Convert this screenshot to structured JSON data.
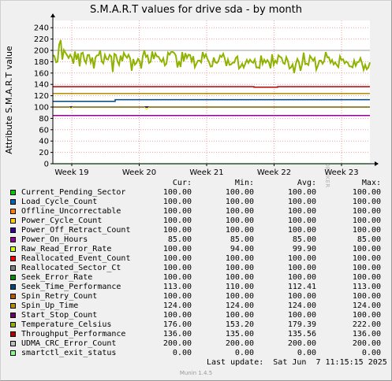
{
  "chart_data": {
    "type": "line",
    "title": "S.M.A.R.T values for drive sda - by month",
    "ylabel": "Attribute S.M.A.R.T value",
    "ylim": [
      0,
      250
    ],
    "yticks": [
      0,
      20,
      40,
      60,
      80,
      100,
      120,
      140,
      160,
      180,
      200,
      220,
      240
    ],
    "xticks": [
      "Week 19",
      "Week 20",
      "Week 21",
      "Week 22",
      "Week 23"
    ],
    "grid": true,
    "legend_position": "bottom",
    "columns": [
      "Cur:",
      "Min:",
      "Avg:",
      "Max:"
    ],
    "series": [
      {
        "name": "Current_Pending_Sector",
        "color": "#00cc00",
        "cur": "100.00",
        "min": "100.00",
        "avg": "100.00",
        "max": "100.00"
      },
      {
        "name": "Load_Cycle_Count",
        "color": "#0066b3",
        "cur": "100.00",
        "min": "100.00",
        "avg": "100.00",
        "max": "100.00"
      },
      {
        "name": "Offline_Uncorrectable",
        "color": "#ff8000",
        "cur": "100.00",
        "min": "100.00",
        "avg": "100.00",
        "max": "100.00"
      },
      {
        "name": "Power_Cycle_Count",
        "color": "#ffcc00",
        "cur": "100.00",
        "min": "100.00",
        "avg": "100.00",
        "max": "100.00"
      },
      {
        "name": "Power_Off_Retract_Count",
        "color": "#330099",
        "cur": "100.00",
        "min": "100.00",
        "avg": "100.00",
        "max": "100.00"
      },
      {
        "name": "Power_On_Hours",
        "color": "#990099",
        "cur": "85.00",
        "min": "85.00",
        "avg": "85.00",
        "max": "85.00"
      },
      {
        "name": "Raw_Read_Error_Rate",
        "color": "#ccff00",
        "cur": "100.00",
        "min": "94.00",
        "avg": "99.90",
        "max": "100.00"
      },
      {
        "name": "Reallocated_Event_Count",
        "color": "#ff0000",
        "cur": "100.00",
        "min": "100.00",
        "avg": "100.00",
        "max": "100.00"
      },
      {
        "name": "Reallocated_Sector_Ct",
        "color": "#808080",
        "cur": "100.00",
        "min": "100.00",
        "avg": "100.00",
        "max": "100.00"
      },
      {
        "name": "Seek_Error_Rate",
        "color": "#008f00",
        "cur": "100.00",
        "min": "100.00",
        "avg": "100.00",
        "max": "100.00"
      },
      {
        "name": "Seek_Time_Performance",
        "color": "#00487d",
        "cur": "113.00",
        "min": "110.00",
        "avg": "112.41",
        "max": "113.00"
      },
      {
        "name": "Spin_Retry_Count",
        "color": "#b35a00",
        "cur": "100.00",
        "min": "100.00",
        "avg": "100.00",
        "max": "100.00"
      },
      {
        "name": "Spin_Up_Time",
        "color": "#b38f00",
        "cur": "124.00",
        "min": "124.00",
        "avg": "124.00",
        "max": "124.00"
      },
      {
        "name": "Start_Stop_Count",
        "color": "#6b006b",
        "cur": "100.00",
        "min": "100.00",
        "avg": "100.00",
        "max": "100.00"
      },
      {
        "name": "Temperature_Celsius",
        "color": "#8fb300",
        "cur": "176.00",
        "min": "153.20",
        "avg": "179.39",
        "max": "222.00"
      },
      {
        "name": "Throughput_Performance",
        "color": "#b30000",
        "cur": "136.00",
        "min": "135.00",
        "avg": "135.56",
        "max": "136.00"
      },
      {
        "name": "UDMA_CRC_Error_Count",
        "color": "#bebebe",
        "cur": "200.00",
        "min": "200.00",
        "avg": "200.00",
        "max": "200.00"
      },
      {
        "name": "smartctl_exit_status",
        "color": "#80ff80",
        "cur": "0.00",
        "min": "0.00",
        "avg": "0.00",
        "max": "0.00"
      }
    ]
  },
  "watermark": "RRDTOOL / TOBI OETIKER",
  "last_update": "Last update:  Sat Jun  7 11:15:15 2025",
  "footer": "Munin 1.4.5"
}
